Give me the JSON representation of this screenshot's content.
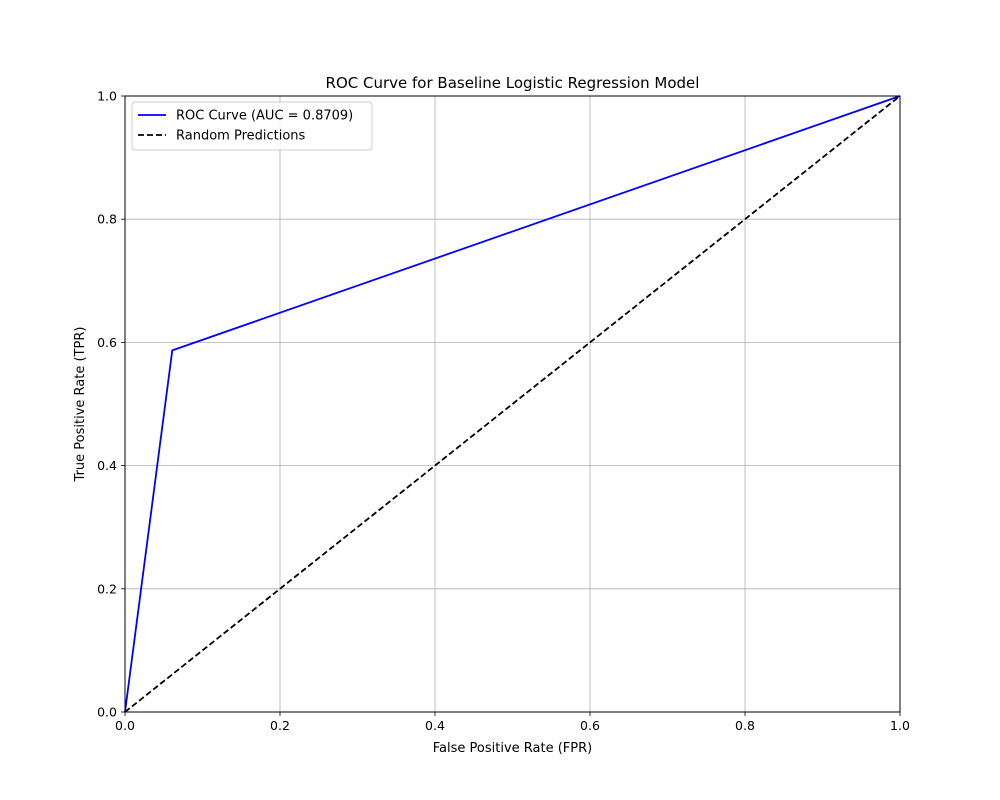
{
  "chart_data": {
    "type": "line",
    "title": "ROC Curve for Baseline Logistic Regression Model",
    "xlabel": "False Positive Rate (FPR)",
    "ylabel": "True Positive Rate (TPR)",
    "xlim": [
      0.0,
      1.0
    ],
    "ylim": [
      0.0,
      1.0
    ],
    "x_ticks": [
      "0.0",
      "0.2",
      "0.4",
      "0.6",
      "0.8",
      "1.0"
    ],
    "y_ticks": [
      "0.0",
      "0.2",
      "0.4",
      "0.6",
      "0.8",
      "1.0"
    ],
    "grid": true,
    "legend_position": "top-left",
    "series": [
      {
        "name": "ROC Curve (AUC = 0.8709)",
        "color": "#0000ff",
        "line_style": "solid",
        "x": [
          0.0,
          0.061,
          1.0
        ],
        "y": [
          0.0,
          0.587,
          1.0
        ]
      },
      {
        "name": "Random Predictions",
        "color": "#000000",
        "line_style": "dashed",
        "x": [
          0.0,
          1.0
        ],
        "y": [
          0.0,
          1.0
        ]
      }
    ]
  }
}
